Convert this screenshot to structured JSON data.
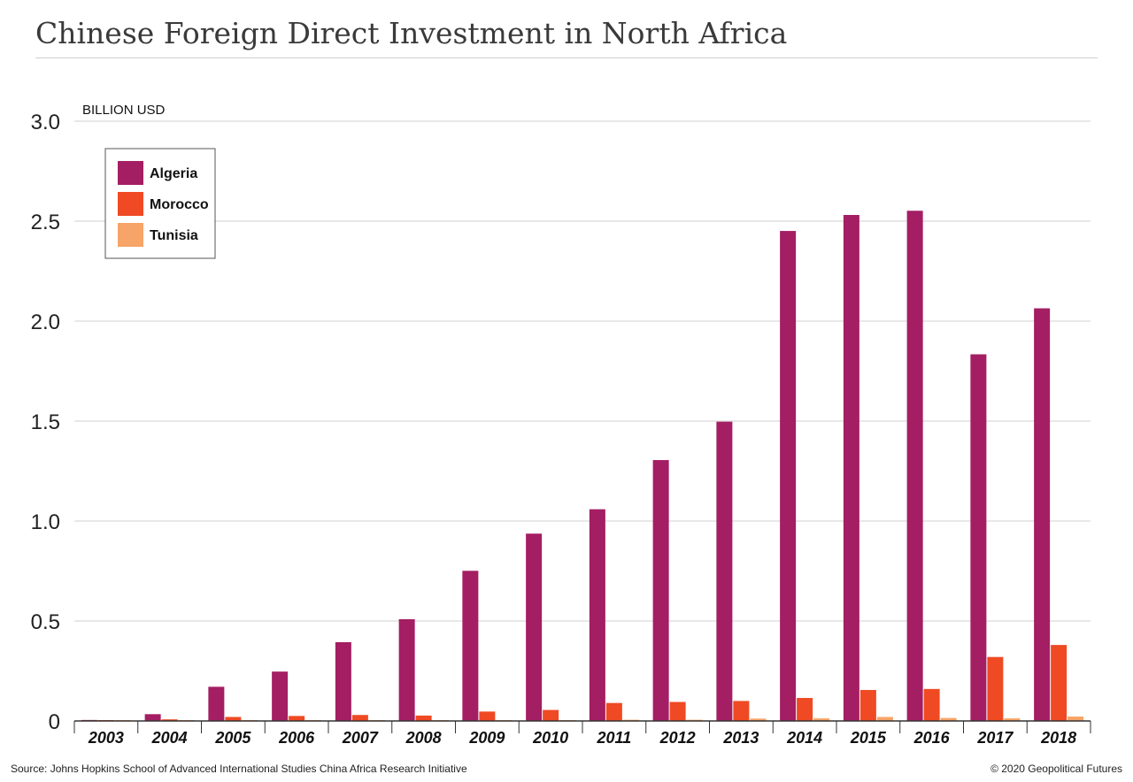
{
  "title": "Chinese Foreign Direct Investment in North Africa",
  "source": "Source: Johns Hopkins School of Advanced International Studies China Africa Research Initiative",
  "copyright": "© 2020 Geopolitical Futures",
  "colors": {
    "Algeria": "#a41e63",
    "Morocco": "#ef4a23",
    "Tunisia": "#f7a468",
    "grid": "#d0d0d0",
    "axis": "#333333"
  },
  "chart_data": {
    "type": "bar",
    "title": "Chinese Foreign Direct Investment in North Africa",
    "ylabel": "BILLION USD",
    "xlabel": "",
    "ylim": [
      0,
      3.0
    ],
    "yticks": [
      0,
      0.5,
      1.0,
      1.5,
      2.0,
      2.5,
      3.0
    ],
    "ytick_labels": [
      "0",
      "0.5",
      "1.0",
      "1.5",
      "2.0",
      "2.5",
      "3.0"
    ],
    "grid": true,
    "legend_position": "top-left",
    "categories": [
      "2003",
      "2004",
      "2005",
      "2006",
      "2007",
      "2008",
      "2009",
      "2010",
      "2011",
      "2012",
      "2013",
      "2014",
      "2015",
      "2016",
      "2017",
      "2018"
    ],
    "series": [
      {
        "name": "Algeria",
        "values": [
          0.005,
          0.034,
          0.171,
          0.247,
          0.394,
          0.509,
          0.751,
          0.937,
          1.059,
          1.305,
          1.497,
          2.451,
          2.531,
          2.552,
          1.834,
          2.064
        ]
      },
      {
        "name": "Morocco",
        "values": [
          0.003,
          0.008,
          0.02,
          0.025,
          0.03,
          0.027,
          0.047,
          0.055,
          0.09,
          0.095,
          0.1,
          0.115,
          0.155,
          0.16,
          0.32,
          0.38
        ]
      },
      {
        "name": "Tunisia",
        "values": [
          0.001,
          0.002,
          0.002,
          0.002,
          0.002,
          0.003,
          0.003,
          0.004,
          0.006,
          0.006,
          0.012,
          0.013,
          0.02,
          0.015,
          0.013,
          0.022
        ]
      }
    ]
  }
}
